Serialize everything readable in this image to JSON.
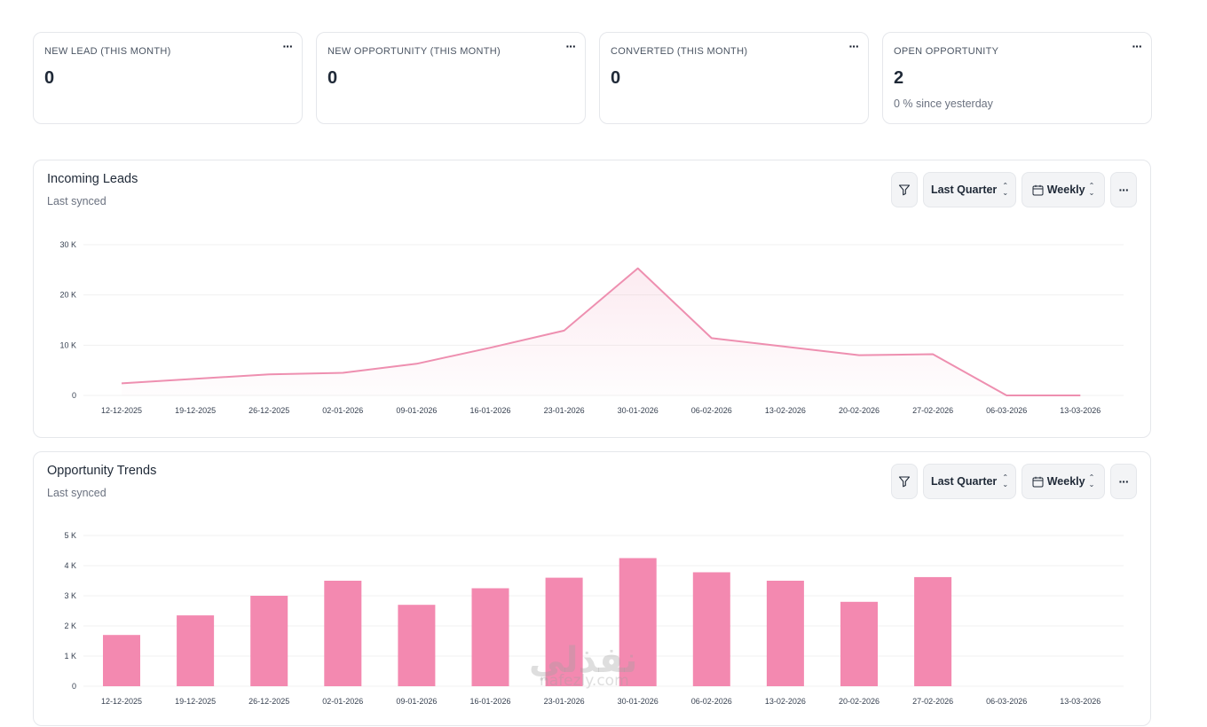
{
  "stats": [
    {
      "label": "NEW LEAD (THIS MONTH)",
      "value": "0",
      "sub": ""
    },
    {
      "label": "NEW OPPORTUNITY (THIS MONTH)",
      "value": "0",
      "sub": ""
    },
    {
      "label": "CONVERTED (THIS MONTH)",
      "value": "0",
      "sub": ""
    },
    {
      "label": "OPEN OPPORTUNITY",
      "value": "2",
      "sub": "0 % since yesterday"
    }
  ],
  "menu_glyph": "···",
  "leads_card": {
    "title": "Incoming Leads",
    "subtitle": "Last synced",
    "period": "Last Quarter",
    "interval": "Weekly"
  },
  "opps_card": {
    "title": "Opportunity Trends",
    "subtitle": "Last synced",
    "period": "Last Quarter",
    "interval": "Weekly"
  },
  "watermark": {
    "arabic": "نفذلي",
    "latin": "nafezly.com"
  },
  "colors": {
    "accent": "#f389b0",
    "line": "#ee8fb0",
    "area": "#fdf2f6"
  },
  "chart_data": [
    {
      "type": "area",
      "categories": [
        "12-12-2025",
        "19-12-2025",
        "26-12-2025",
        "02-01-2026",
        "09-01-2026",
        "16-01-2026",
        "23-01-2026",
        "30-01-2026",
        "06-02-2026",
        "13-02-2026",
        "20-02-2026",
        "27-02-2026",
        "06-03-2026",
        "13-03-2026"
      ],
      "values": [
        2400,
        3300,
        4200,
        4500,
        6300,
        9500,
        12900,
        25300,
        11400,
        9700,
        8000,
        8200,
        0,
        0
      ],
      "yticks": [
        "0",
        "10 K",
        "20 K",
        "30 K"
      ],
      "ylim": [
        0,
        30000
      ],
      "grid": true
    },
    {
      "type": "bar",
      "categories": [
        "12-12-2025",
        "19-12-2025",
        "26-12-2025",
        "02-01-2026",
        "09-01-2026",
        "16-01-2026",
        "23-01-2026",
        "30-01-2026",
        "06-02-2026",
        "13-02-2026",
        "20-02-2026",
        "27-02-2026",
        "06-03-2026",
        "13-03-2026"
      ],
      "values": [
        1700,
        2350,
        3000,
        3500,
        2700,
        3250,
        3600,
        4250,
        3780,
        3500,
        2800,
        3620,
        0,
        0
      ],
      "yticks": [
        "0",
        "1 K",
        "2 K",
        "3 K",
        "4 K",
        "5 K"
      ],
      "ylim": [
        0,
        5000
      ],
      "grid": true
    }
  ]
}
